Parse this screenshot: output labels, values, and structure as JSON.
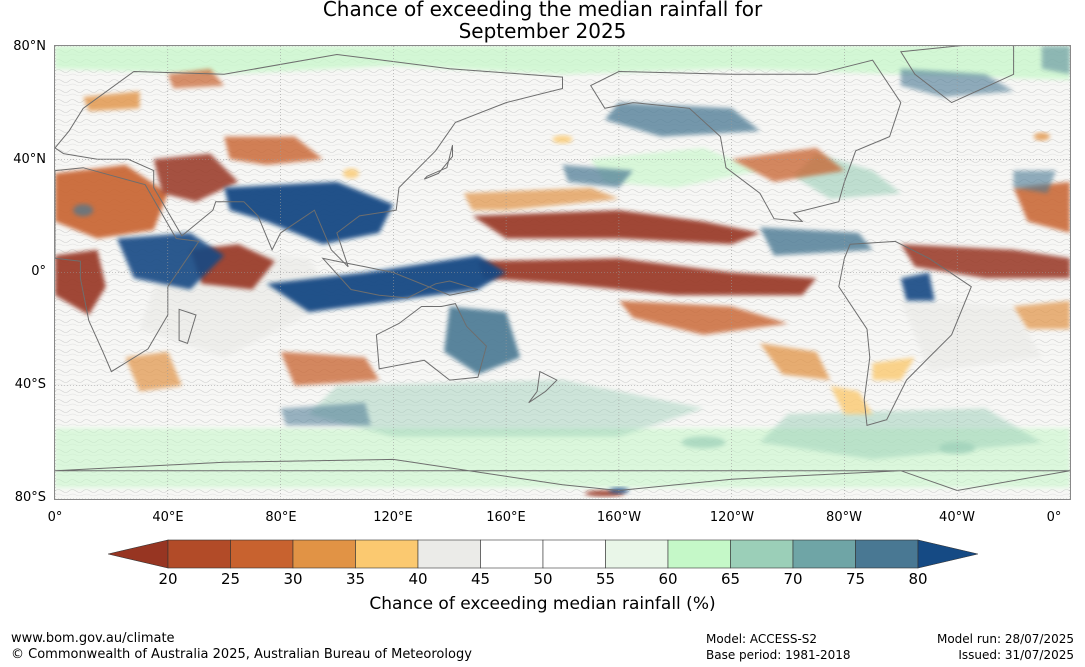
{
  "title": {
    "line1": "Chance of exceeding the median rainfall for",
    "line2": "September 2025"
  },
  "latitude_labels": [
    "80°N",
    "40°N",
    "0°",
    "40°S",
    "80°S"
  ],
  "longitude_labels": [
    "0°",
    "40°E",
    "80°E",
    "120°E",
    "160°E",
    "160°W",
    "120°W",
    "80°W",
    "40°W",
    "0°"
  ],
  "colorbar": {
    "ticks": [
      "20",
      "25",
      "30",
      "35",
      "40",
      "45",
      "50",
      "55",
      "60",
      "65",
      "70",
      "75",
      "80"
    ],
    "colors": [
      "#973522",
      "#b24b28",
      "#c8622f",
      "#e19345",
      "#fbc970",
      "#ebebe8",
      "#ffffff",
      "#ffffff",
      "#e9f6e8",
      "#c5f8c8",
      "#9bcfb8",
      "#6fa5a6",
      "#497893",
      "#154a84"
    ],
    "title": "Chance of exceeding median rainfall (%)"
  },
  "footer": {
    "url": "www.bom.gov.au/climate",
    "copyright": "© Commonwealth of Australia 2025, Australian Bureau of Meteorology",
    "model": "Model: ACCESS-S2",
    "base_period": "Base period: 1981-2018",
    "model_run": "Model run: 28/07/2025",
    "issued": "Issued: 31/07/2025"
  },
  "map": {
    "projection": "equirectangular",
    "lon_range": [
      0,
      360
    ],
    "lat_range": [
      -80,
      80
    ],
    "colors": {
      "ocean_base": "#f7f7f5",
      "coastline": "#6e6e6e",
      "gridline": "#9a9a9a",
      "dry_strong": "#973522",
      "dry": "#c8622f",
      "dry_mild": "#e19345",
      "dry_light": "#fbc970",
      "neutral": "#e6e6e3",
      "wet_light": "#c5f8c8",
      "wet_mild": "#9bcfb8",
      "wet": "#497893",
      "wet_strong": "#154a84"
    }
  }
}
